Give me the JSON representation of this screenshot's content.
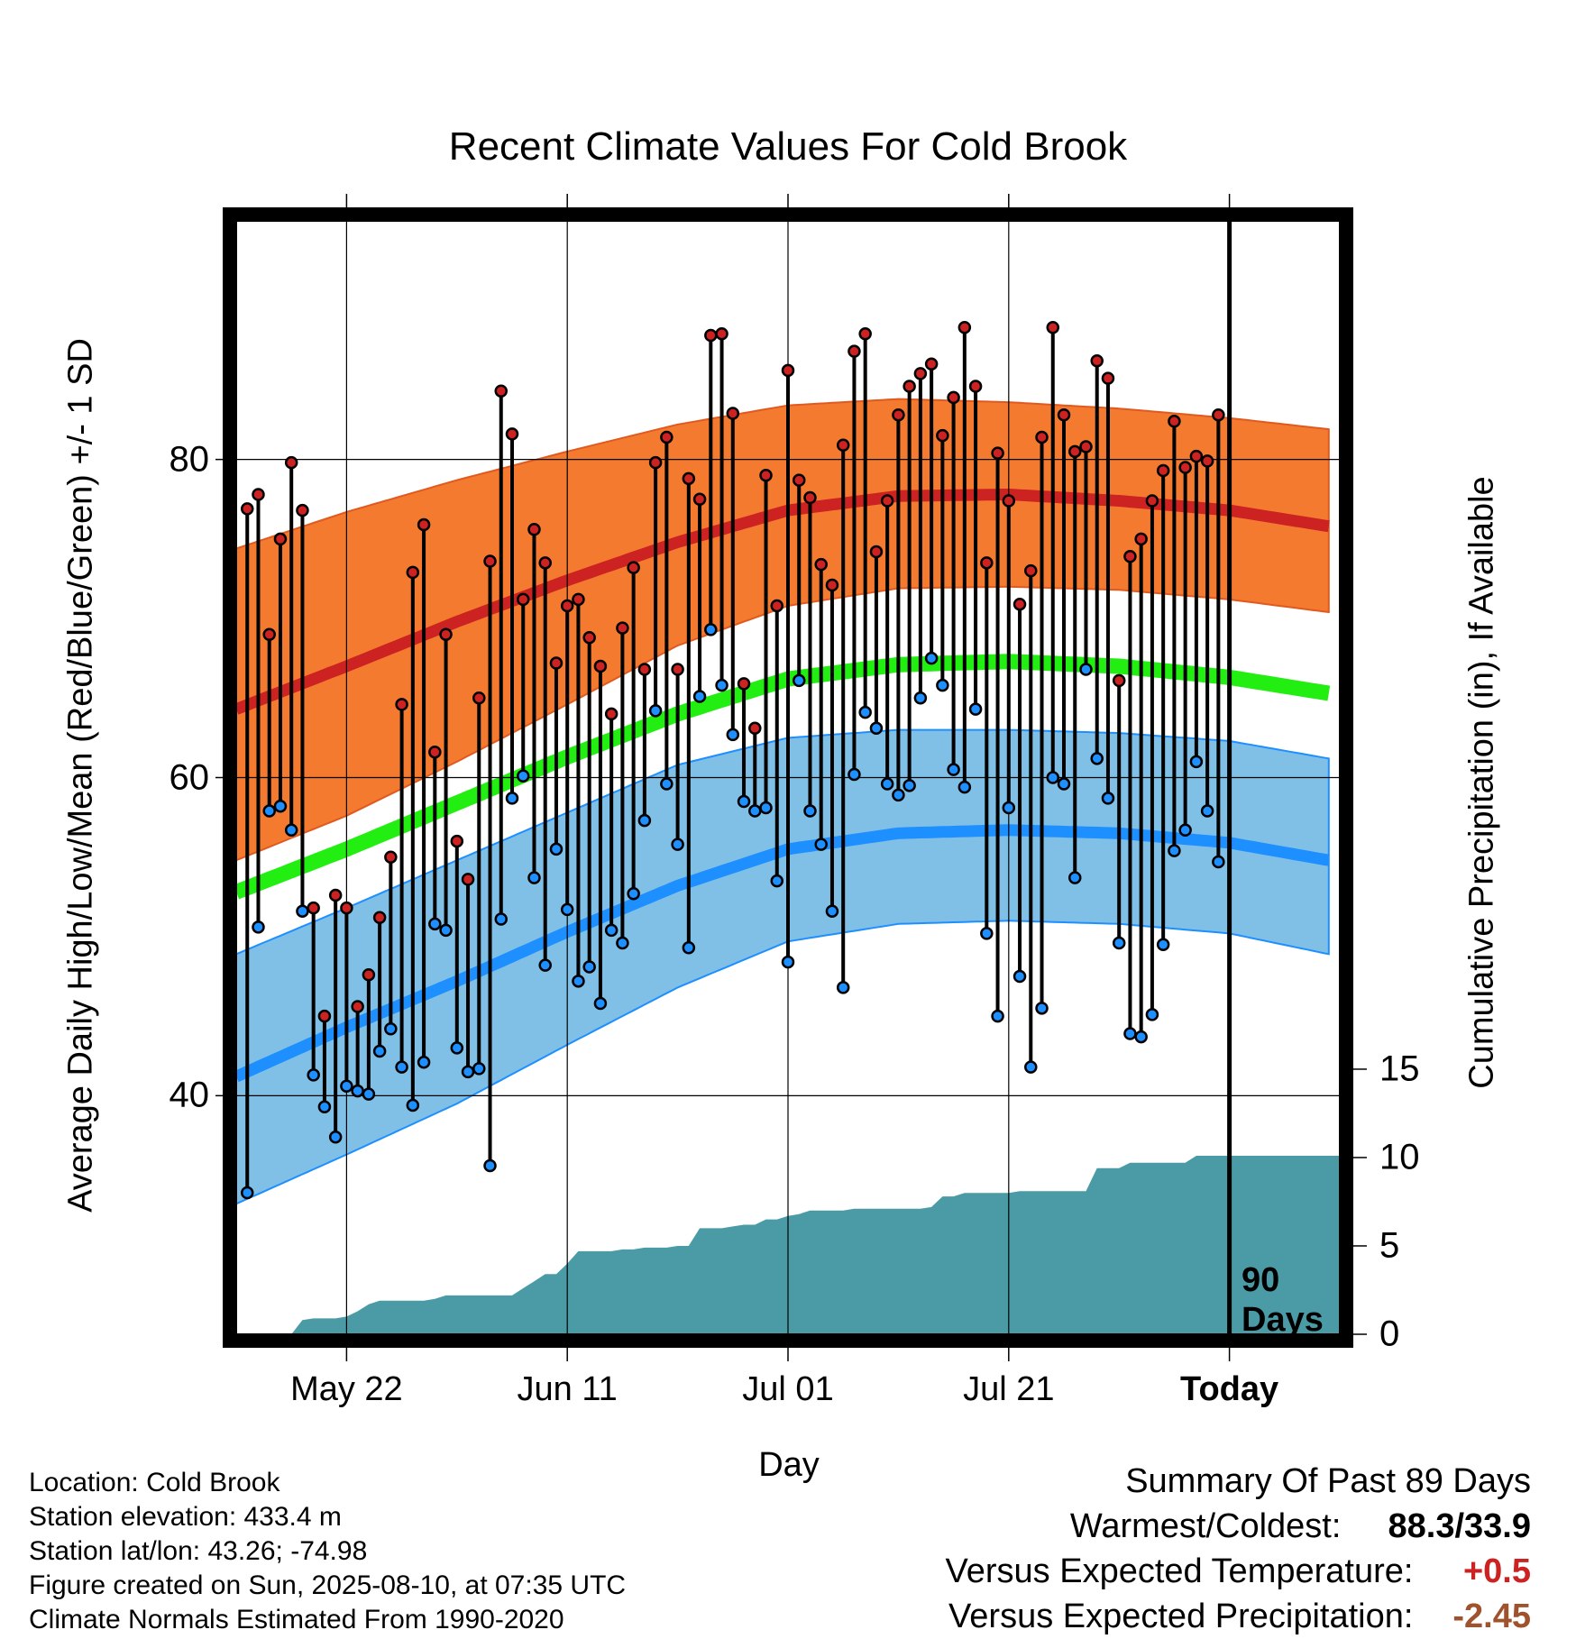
{
  "chart_data": {
    "type": "line",
    "title": "Recent Climate Values For Cold Brook",
    "xlabel": "Day",
    "ylabel": "Average Daily High/Low/Mean (Red/Blue/Green) +/- 1 SD",
    "y2label": "Cumulative Precipitation (in), If Available",
    "x_range_days": [
      -90,
      10
    ],
    "x_ticks": [
      {
        "day": -80,
        "label": "May 22"
      },
      {
        "day": -60,
        "label": "Jun 11"
      },
      {
        "day": -40,
        "label": "Jul 01"
      },
      {
        "day": -20,
        "label": "Jul 21"
      },
      {
        "day": 0,
        "label": "Today"
      }
    ],
    "ylim": [
      25,
      95
    ],
    "y_ticks": [
      40,
      60,
      80
    ],
    "y2lim": [
      0,
      63
    ],
    "y2_ticks": [
      0,
      5,
      10,
      15
    ],
    "today_marker": {
      "day": 0,
      "label_line1": "90",
      "label_line2": "Days"
    },
    "normals": {
      "days": [
        -90,
        -80,
        -70,
        -60,
        -50,
        -40,
        -30,
        -20,
        -10,
        0,
        9
      ],
      "high_mean": [
        64.3,
        67.0,
        69.8,
        72.4,
        74.8,
        76.8,
        77.7,
        77.8,
        77.4,
        76.8,
        75.8
      ],
      "high_upper": [
        74.4,
        76.7,
        78.7,
        80.5,
        82.2,
        83.4,
        83.8,
        83.6,
        83.2,
        82.6,
        81.9
      ],
      "high_lower": [
        54.8,
        57.6,
        61.0,
        64.6,
        68.3,
        70.8,
        71.9,
        72.0,
        71.8,
        71.2,
        70.4
      ],
      "mean": [
        52.8,
        55.5,
        58.4,
        61.3,
        64.0,
        66.2,
        67.1,
        67.3,
        67.0,
        66.3,
        65.3
      ],
      "low_mean": [
        41.2,
        44.3,
        47.2,
        50.3,
        53.2,
        55.5,
        56.5,
        56.7,
        56.5,
        55.9,
        54.8
      ],
      "low_upper": [
        48.9,
        51.8,
        54.8,
        57.8,
        60.8,
        62.5,
        63.0,
        63.0,
        62.8,
        62.3,
        61.2
      ],
      "low_lower": [
        33.2,
        36.3,
        39.5,
        43.2,
        46.8,
        49.7,
        50.8,
        51.0,
        50.8,
        50.2,
        48.9
      ]
    },
    "series": [
      {
        "name": "High",
        "color": "#cc2222",
        "values": [
          76.9,
          77.8,
          69.0,
          75.0,
          79.8,
          76.8,
          51.8,
          45.0,
          52.6,
          51.8,
          45.6,
          47.6,
          51.2,
          55.0,
          64.6,
          72.9,
          75.9,
          61.6,
          69.0,
          56.0,
          53.6,
          65.0,
          73.6,
          84.3,
          81.6,
          71.2,
          75.6,
          73.5,
          67.2,
          70.8,
          71.2,
          68.8,
          67.0,
          64.0,
          69.4,
          73.2,
          66.8,
          79.8,
          81.4,
          66.8,
          78.8,
          77.5,
          87.8,
          87.9,
          82.9,
          65.9,
          63.1,
          79.0,
          70.8,
          85.6,
          78.7,
          77.6,
          73.4,
          72.1,
          80.9,
          86.8,
          87.9,
          74.2,
          77.4,
          82.8,
          84.6,
          85.4,
          86.0,
          81.5,
          83.9,
          88.3,
          84.6,
          73.5,
          80.4,
          77.4,
          70.9,
          73.0,
          81.4,
          88.3,
          82.8,
          80.5,
          80.8,
          86.2,
          85.1,
          66.1,
          73.9,
          75.0,
          77.4,
          79.3,
          82.4,
          79.5,
          80.2,
          79.9,
          82.8
        ]
      },
      {
        "name": "Low",
        "color": "#1e8fff",
        "values": [
          33.9,
          50.6,
          57.9,
          58.2,
          56.7,
          51.6,
          41.3,
          39.3,
          37.4,
          40.6,
          40.3,
          40.1,
          42.8,
          44.2,
          41.8,
          39.4,
          42.1,
          50.8,
          50.4,
          43.0,
          41.5,
          41.7,
          35.6,
          51.1,
          58.7,
          60.1,
          53.7,
          48.2,
          55.5,
          51.7,
          47.2,
          48.1,
          45.8,
          50.4,
          49.6,
          52.7,
          57.3,
          64.2,
          59.6,
          55.8,
          49.3,
          65.1,
          69.3,
          65.8,
          62.7,
          58.5,
          57.9,
          58.1,
          53.5,
          48.4,
          66.1,
          57.9,
          55.8,
          51.6,
          46.8,
          60.2,
          64.1,
          63.1,
          59.6,
          58.9,
          59.5,
          65.0,
          67.5,
          65.8,
          60.5,
          59.4,
          64.3,
          50.2,
          45.0,
          58.1,
          47.5,
          41.8,
          45.5,
          60.0,
          59.6,
          53.7,
          66.8,
          61.2,
          58.7,
          49.6,
          43.9,
          43.7,
          45.1,
          49.5,
          55.4,
          56.7,
          61.0,
          57.9,
          54.7
        ]
      },
      {
        "name": "Cumulative Precipitation",
        "color": "#4a9ba6",
        "values_in": [
          0,
          0,
          0,
          0,
          0,
          0.0,
          0.8,
          0.9,
          0.9,
          0.9,
          1.0,
          1.3,
          1.7,
          1.9,
          1.9,
          1.9,
          1.9,
          1.9,
          2.0,
          2.2,
          2.2,
          2.2,
          2.2,
          2.2,
          2.2,
          2.2,
          2.6,
          3.0,
          3.4,
          3.4,
          4.0,
          4.7,
          4.7,
          4.7,
          4.7,
          4.8,
          4.8,
          4.9,
          4.9,
          4.9,
          5.0,
          5.0,
          6.0,
          6.0,
          6.0,
          6.1,
          6.2,
          6.2,
          6.5,
          6.5,
          6.7,
          6.8,
          7.0,
          7.0,
          7.0,
          7.0,
          7.1,
          7.1,
          7.1,
          7.1,
          7.1,
          7.1,
          7.1,
          7.2,
          7.8,
          7.8,
          8.0,
          8.0,
          8.0,
          8.0,
          8.0,
          8.1,
          8.1,
          8.1,
          8.1,
          8.1,
          8.1,
          8.1,
          9.4,
          9.4,
          9.4,
          9.7,
          9.7,
          9.7,
          9.7,
          9.7,
          9.7,
          10.1,
          10.1,
          10.1,
          10.1,
          10.1,
          10.1,
          10.1,
          10.1,
          10.1,
          10.1,
          10.1,
          10.1
        ]
      }
    ]
  },
  "station_info": {
    "location": "Location: Cold Brook",
    "elevation": "Station elevation: 433.4 m",
    "latlon": "Station lat/lon: 43.26; -74.98",
    "created": "Figure created on Sun, 2025-08-10, at 07:35 UTC",
    "normals": "Climate Normals Estimated From 1990-2020"
  },
  "summary": {
    "heading": "Summary Of Past 89 Days",
    "warmest_coldest_label": "Warmest/Coldest:",
    "warmest_coldest_value": "88.3/33.9",
    "temp_label": "Versus Expected Temperature:",
    "temp_value": "+0.5",
    "temp_color": "#cc2222",
    "precip_label": "Versus Expected Precipitation:",
    "precip_value": "-2.45",
    "precip_color": "#a0522d"
  }
}
